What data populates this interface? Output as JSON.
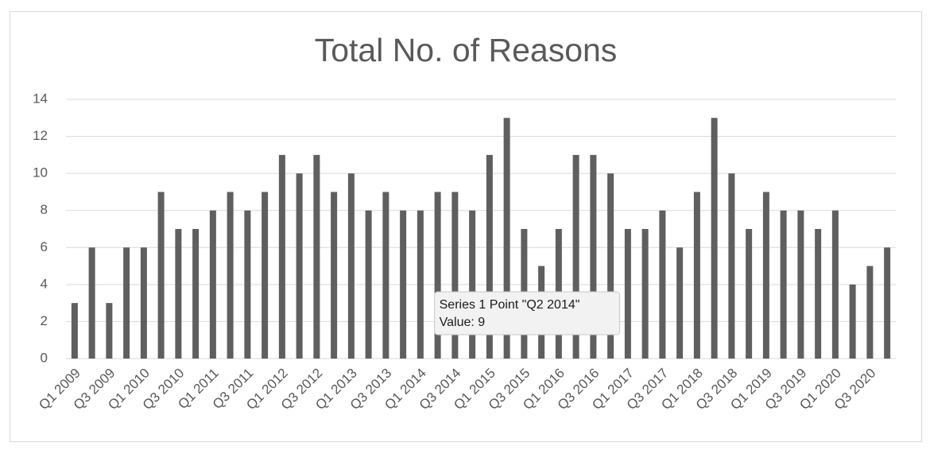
{
  "chart_data": {
    "type": "bar",
    "title": "Total No. of Reasons",
    "categories": [
      "Q1 2009",
      null,
      "Q3 2009",
      null,
      "Q1 2010",
      null,
      "Q3 2010",
      null,
      "Q1 2011",
      null,
      "Q3 2011",
      null,
      "Q1 2012",
      null,
      "Q3 2012",
      null,
      "Q1 2013",
      null,
      "Q3 2013",
      null,
      "Q1 2014",
      null,
      "Q3 2014",
      null,
      "Q1 2015",
      null,
      "Q3 2015",
      null,
      "Q1 2016",
      null,
      "Q3 2016",
      null,
      "Q1 2017",
      null,
      "Q3 2017",
      null,
      "Q1 2018",
      null,
      "Q3 2018",
      null,
      "Q1 2019",
      null,
      "Q3 2019",
      null,
      "Q1 2020",
      null,
      "Q3 2020",
      null
    ],
    "values": [
      3,
      6,
      3,
      6,
      6,
      9,
      7,
      7,
      8,
      9,
      8,
      9,
      11,
      10,
      11,
      9,
      10,
      8,
      9,
      8,
      8,
      9,
      9,
      8,
      11,
      13,
      7,
      5,
      7,
      11,
      11,
      10,
      7,
      7,
      8,
      6,
      9,
      13,
      10,
      7,
      9,
      8,
      8,
      7,
      8,
      4,
      5,
      6
    ],
    "color": "#5f5f5f",
    "ylim": [
      0,
      14
    ],
    "yticks": [
      0,
      2,
      4,
      6,
      8,
      10,
      12,
      14
    ],
    "grid": true,
    "tooltip": {
      "index": 21,
      "lines": [
        "Series 1 Point \"Q2 2014\"",
        "Value: 9"
      ]
    }
  }
}
